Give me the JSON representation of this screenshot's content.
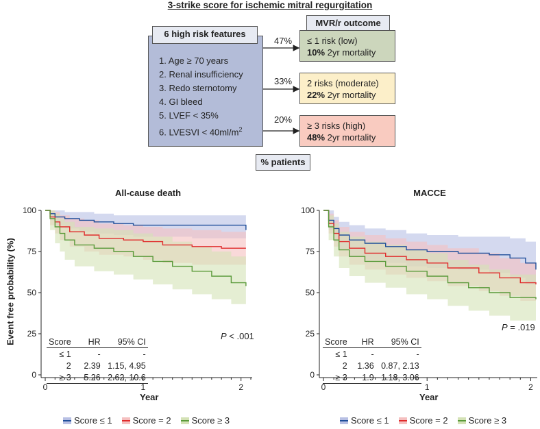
{
  "diagram": {
    "title": "3-strike score for ischemic mitral regurgitation",
    "features_header": "6 high risk features",
    "features": [
      "1. Age ≥ 70 years",
      "2. Renal insufficiency",
      "3. Redo sternotomy",
      "4. GI bleed",
      "5. LVEF < 35%",
      "6. LVESVI < 40ml/m²"
    ],
    "outcome_header": "MVR/r outcome",
    "outcomes": [
      {
        "pct": "47%",
        "line1": "≤ 1 risk (low)",
        "bold": "10%",
        "rest": " 2yr mortality",
        "color": "#ccd6bc"
      },
      {
        "pct": "33%",
        "line1": "2 risks (moderate)",
        "bold": "22%",
        "rest": " 2yr mortality",
        "color": "#fcefc9"
      },
      {
        "pct": "20%",
        "line1": "≥ 3 risks (high)",
        "bold": "48%",
        "rest": " 2yr mortality",
        "color": "#f9cbc0"
      }
    ],
    "patients_label": "% patients"
  },
  "shared": {
    "ylabel": "Event free probability (%)",
    "xlabel": "Year",
    "legend": [
      "Score ≤ 1",
      "Score = 2",
      "Score ≥ 3"
    ],
    "table_headers": [
      "Score",
      "HR",
      "95% CI"
    ]
  },
  "chart_data": [
    {
      "type": "line",
      "title": "All-cause death",
      "xlabel": "Year",
      "ylabel": "Event free probability (%)",
      "xlim": [
        0,
        2.1
      ],
      "ylim": [
        0,
        100
      ],
      "xticks": [
        0,
        1,
        2
      ],
      "yticks": [
        0,
        25,
        50,
        75,
        100
      ],
      "p_value": "P < .001",
      "series": [
        {
          "name": "Score ≤ 1",
          "color": "#1f4e9a",
          "fill": "#b8c0e4",
          "x": [
            0,
            0.05,
            0.1,
            0.2,
            0.35,
            0.5,
            0.7,
            0.9,
            1.2,
            1.5,
            1.8,
            2.05,
            2.05
          ],
          "y": [
            100,
            98,
            96,
            95,
            94,
            93,
            92,
            91,
            91,
            91,
            91,
            91,
            88
          ],
          "lower": [
            100,
            94,
            91,
            89,
            87,
            86,
            85,
            84,
            84,
            83,
            83,
            83,
            80
          ],
          "upper": [
            100,
            100,
            100,
            99,
            99,
            98,
            97,
            97,
            97,
            97,
            97,
            97,
            95
          ]
        },
        {
          "name": "Score = 2",
          "color": "#e02b2b",
          "fill": "#f5c0c0",
          "x": [
            0,
            0.05,
            0.1,
            0.15,
            0.25,
            0.4,
            0.55,
            0.8,
            1.0,
            1.2,
            1.5,
            1.8,
            2.05
          ],
          "y": [
            100,
            96,
            93,
            90,
            87,
            85,
            83,
            82,
            81,
            79,
            78,
            77,
            77
          ],
          "lower": [
            100,
            91,
            86,
            82,
            78,
            75,
            73,
            72,
            70,
            68,
            67,
            67,
            67
          ],
          "upper": [
            100,
            100,
            99,
            97,
            95,
            94,
            92,
            91,
            90,
            89,
            88,
            87,
            87
          ]
        },
        {
          "name": "Score ≥ 3",
          "color": "#5a9a3a",
          "fill": "#d4e2b6",
          "x": [
            0,
            0.05,
            0.1,
            0.15,
            0.2,
            0.3,
            0.5,
            0.7,
            0.9,
            1.1,
            1.3,
            1.5,
            1.7,
            1.9,
            2.05
          ],
          "y": [
            100,
            95,
            90,
            86,
            82,
            79,
            77,
            75,
            72,
            69,
            66,
            63,
            60,
            56,
            54
          ],
          "lower": [
            100,
            88,
            80,
            75,
            70,
            66,
            63,
            61,
            58,
            55,
            52,
            49,
            46,
            43,
            41
          ],
          "upper": [
            100,
            100,
            98,
            95,
            93,
            90,
            89,
            88,
            86,
            84,
            81,
            78,
            75,
            72,
            70
          ]
        }
      ],
      "table": [
        {
          "score": "≤ 1",
          "hr": "-",
          "ci": "-"
        },
        {
          "score": "2",
          "hr": "2.39",
          "ci": "1.15, 4.95"
        },
        {
          "score": "≥ 3",
          "hr": "5.26",
          "ci": "2.62, 10.6"
        }
      ]
    },
    {
      "type": "line",
      "title": "MACCE",
      "xlabel": "Year",
      "ylabel": "Event free probability (%)",
      "xlim": [
        0,
        2.05
      ],
      "ylim": [
        0,
        100
      ],
      "xticks": [
        0,
        1,
        2
      ],
      "yticks": [
        0,
        25,
        50,
        75,
        100
      ],
      "p_value": "P = .019",
      "series": [
        {
          "name": "Score ≤ 1",
          "color": "#1f4e9a",
          "fill": "#b8c0e4",
          "x": [
            0,
            0.05,
            0.1,
            0.15,
            0.25,
            0.4,
            0.6,
            0.8,
            1.0,
            1.3,
            1.6,
            1.8,
            1.95,
            2.05
          ],
          "y": [
            100,
            94,
            89,
            85,
            82,
            80,
            78,
            76,
            75,
            74,
            73,
            71,
            68,
            64
          ],
          "lower": [
            100,
            88,
            81,
            76,
            72,
            70,
            68,
            66,
            65,
            64,
            62,
            59,
            55,
            51
          ],
          "upper": [
            100,
            100,
            96,
            93,
            91,
            89,
            88,
            86,
            85,
            84,
            84,
            83,
            81,
            78
          ]
        },
        {
          "name": "Score = 2",
          "color": "#e02b2b",
          "fill": "#f5c0c0",
          "x": [
            0,
            0.05,
            0.1,
            0.15,
            0.25,
            0.4,
            0.6,
            0.8,
            1.0,
            1.2,
            1.5,
            1.7,
            1.9,
            2.05
          ],
          "y": [
            100,
            92,
            86,
            81,
            77,
            74,
            72,
            70,
            68,
            65,
            62,
            59,
            56,
            55
          ],
          "lower": [
            100,
            86,
            78,
            72,
            67,
            64,
            61,
            59,
            57,
            54,
            51,
            48,
            45,
            44
          ],
          "upper": [
            100,
            98,
            94,
            90,
            87,
            85,
            83,
            81,
            79,
            77,
            74,
            71,
            68,
            67
          ]
        },
        {
          "name": "Score ≥ 3",
          "color": "#5a9a3a",
          "fill": "#d4e2b6",
          "x": [
            0,
            0.05,
            0.1,
            0.15,
            0.25,
            0.4,
            0.6,
            0.8,
            1.0,
            1.2,
            1.4,
            1.6,
            1.8,
            2.05
          ],
          "y": [
            100,
            90,
            82,
            76,
            72,
            69,
            66,
            63,
            60,
            56,
            53,
            50,
            47,
            46
          ],
          "lower": [
            100,
            82,
            72,
            65,
            60,
            56,
            53,
            49,
            46,
            42,
            39,
            36,
            33,
            32
          ],
          "upper": [
            100,
            97,
            92,
            87,
            84,
            81,
            79,
            76,
            74,
            70,
            67,
            64,
            61,
            60
          ]
        }
      ],
      "table": [
        {
          "score": "≤ 1",
          "hr": "-",
          "ci": "-"
        },
        {
          "score": "2",
          "hr": "1.36",
          "ci": "0.87, 2.13"
        },
        {
          "score": "≥ 3",
          "hr": "1.9",
          "ci": "1.18, 3.06"
        }
      ]
    }
  ]
}
